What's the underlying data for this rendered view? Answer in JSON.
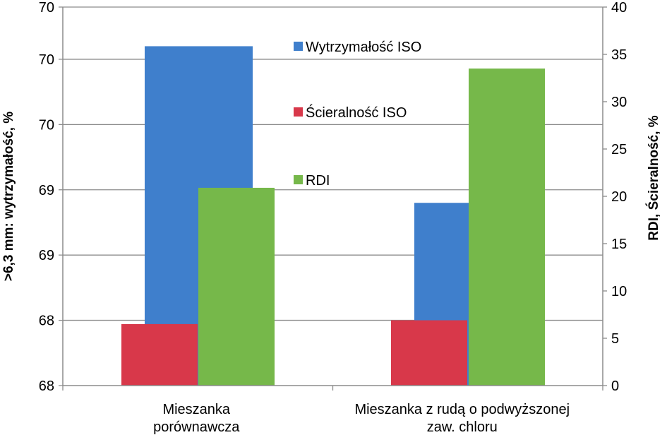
{
  "chart_data": {
    "type": "bar",
    "categories": [
      [
        "Mieszanka",
        "porównawcza"
      ],
      [
        "Mieszanka z rudą o podwyższonej",
        "zaw. chloru"
      ]
    ],
    "series": [
      {
        "name": "Wytrzymałość ISO",
        "axis": "left",
        "color": "#3F7FCC",
        "values": [
          70.1,
          68.9
        ]
      },
      {
        "name": "Ścieralność ISO",
        "axis": "right",
        "color": "#D8384A",
        "values": [
          6.5,
          6.9
        ]
      },
      {
        "name": "RDI",
        "axis": "right",
        "color": "#76B84A",
        "values": [
          20.9,
          33.5
        ]
      }
    ],
    "left_axis": {
      "label": ">6,3 mm:  wytrzymałość,  %",
      "ylim": [
        67.5,
        70.4
      ],
      "tick_values": [
        67.5,
        68.0,
        68.5,
        69.0,
        69.5,
        70.0,
        70.4
      ],
      "tick_labels": [
        "68",
        "68",
        "69",
        "69",
        "70",
        "70",
        "70"
      ]
    },
    "right_axis": {
      "label": "RDI, Ścieralność, %",
      "ylim": [
        0,
        40
      ],
      "ticks": [
        0,
        5,
        10,
        15,
        20,
        25,
        30,
        35,
        40
      ]
    },
    "grid": true,
    "legend_position": "inside-center"
  }
}
